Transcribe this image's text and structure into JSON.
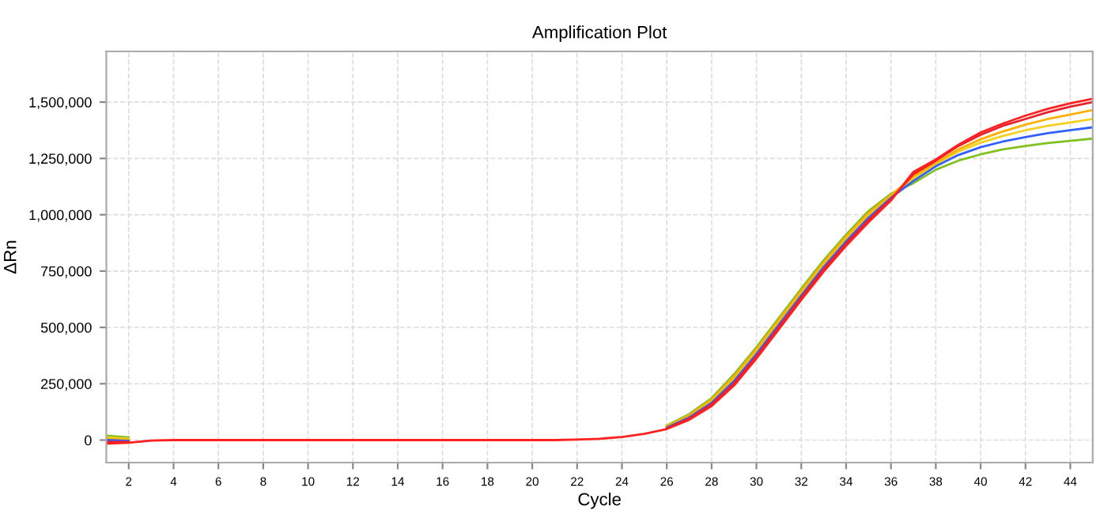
{
  "chart_data": {
    "type": "line",
    "title": "Amplification Plot",
    "xlabel": "Cycle",
    "ylabel": "ΔRn",
    "x": [
      1,
      2,
      3,
      4,
      5,
      6,
      7,
      8,
      9,
      10,
      11,
      12,
      13,
      14,
      15,
      16,
      17,
      18,
      19,
      20,
      21,
      22,
      23,
      24,
      25,
      26,
      27,
      28,
      29,
      30,
      31,
      32,
      33,
      34,
      35,
      36,
      37,
      38,
      39,
      40,
      41,
      42,
      43,
      44,
      45
    ],
    "series": [
      {
        "color": "#80c020",
        "values": [
          20000,
          12000,
          null,
          null,
          null,
          null,
          null,
          null,
          null,
          null,
          null,
          null,
          null,
          null,
          null,
          null,
          null,
          null,
          null,
          null,
          null,
          null,
          null,
          null,
          null,
          64000,
          115000,
          186000,
          292000,
          412000,
          542000,
          672000,
          798000,
          912000,
          1017000,
          1093000,
          1140000,
          1200000,
          1240000,
          1268000,
          1290000,
          1305000,
          1318000,
          1328000,
          1338000
        ]
      },
      {
        "color": "#f5d020",
        "values": [
          12000,
          6000,
          null,
          null,
          null,
          null,
          null,
          null,
          null,
          null,
          null,
          null,
          null,
          null,
          null,
          null,
          null,
          null,
          null,
          null,
          null,
          null,
          null,
          null,
          null,
          58000,
          105000,
          172000,
          272000,
          392000,
          522000,
          652000,
          778000,
          892000,
          997000,
          1081000,
          1160000,
          1225000,
          1280000,
          1320000,
          1350000,
          1375000,
          1395000,
          1410000,
          1425000
        ]
      },
      {
        "color": "#ffb000",
        "values": [
          6000,
          1000,
          null,
          null,
          null,
          null,
          null,
          null,
          null,
          null,
          null,
          null,
          null,
          null,
          null,
          null,
          null,
          null,
          null,
          null,
          null,
          null,
          null,
          null,
          null,
          61000,
          110000,
          179000,
          282000,
          402000,
          532000,
          662000,
          788000,
          902000,
          1007000,
          1087000,
          1170000,
          1230000,
          1290000,
          1335000,
          1370000,
          1400000,
          1425000,
          1445000,
          1465000
        ]
      },
      {
        "color": "#3060ff",
        "values": [
          0,
          -4000,
          null,
          null,
          null,
          null,
          null,
          null,
          null,
          null,
          null,
          null,
          null,
          null,
          null,
          null,
          null,
          null,
          null,
          null,
          null,
          null,
          null,
          null,
          null,
          55000,
          100000,
          165000,
          262000,
          382000,
          512000,
          642000,
          768000,
          882000,
          987000,
          1075000,
          1150000,
          1215000,
          1265000,
          1300000,
          1325000,
          1345000,
          1362000,
          1375000,
          1388000
        ]
      },
      {
        "color": "#e8202a",
        "values": [
          -8000,
          -8000,
          null,
          null,
          null,
          null,
          null,
          null,
          null,
          null,
          null,
          null,
          null,
          null,
          null,
          null,
          null,
          null,
          null,
          null,
          null,
          null,
          null,
          null,
          null,
          52000,
          95000,
          158000,
          252000,
          372000,
          502000,
          632000,
          758000,
          872000,
          977000,
          1069000,
          1180000,
          1240000,
          1305000,
          1355000,
          1395000,
          1425000,
          1455000,
          1480000,
          1500000
        ]
      },
      {
        "color": "#ff2020",
        "values": [
          -16000,
          -12000,
          -2000,
          0,
          0,
          0,
          0,
          0,
          0,
          0,
          0,
          0,
          0,
          0,
          0,
          0,
          0,
          0,
          0,
          0,
          0,
          2000,
          6000,
          14000,
          28000,
          49000,
          90000,
          151000,
          242000,
          362000,
          492000,
          622000,
          748000,
          862000,
          967000,
          1063000,
          1190000,
          1245000,
          1310000,
          1365000,
          1405000,
          1440000,
          1470000,
          1495000,
          1515000
        ]
      }
    ],
    "xlim": [
      1,
      45
    ],
    "ylim": [
      -100000,
      1725000
    ],
    "xticks": [
      2,
      4,
      6,
      8,
      10,
      12,
      14,
      16,
      18,
      20,
      22,
      24,
      26,
      28,
      30,
      32,
      34,
      36,
      38,
      40,
      42,
      44
    ],
    "yticks": [
      {
        "value": 0,
        "label": "0"
      },
      {
        "value": 250000,
        "label": "250,000"
      },
      {
        "value": 500000,
        "label": "500,000"
      },
      {
        "value": 750000,
        "label": "750,000"
      },
      {
        "value": 1000000,
        "label": "1,000,000"
      },
      {
        "value": 1250000,
        "label": "1,250,000"
      },
      {
        "value": 1500000,
        "label": "1,500,000"
      }
    ],
    "grid": true,
    "line_style": "solid"
  }
}
